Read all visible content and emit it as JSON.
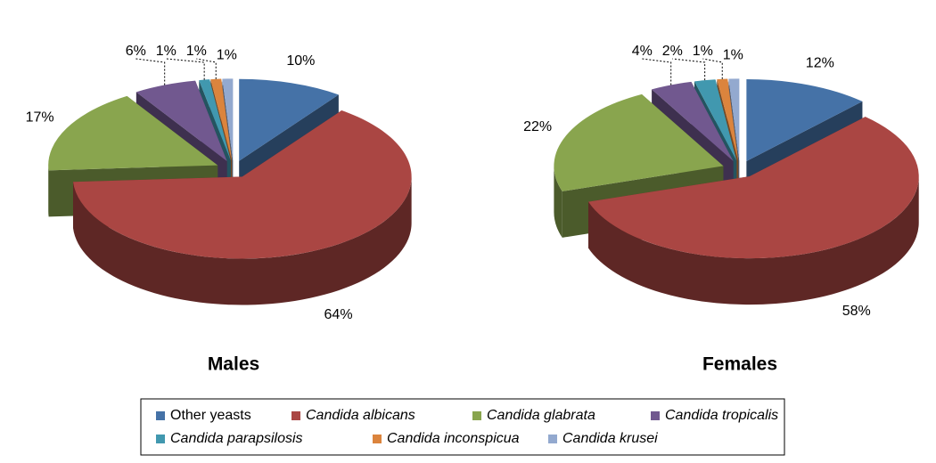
{
  "chart_data": {
    "type": "pie",
    "categories": [
      "Other yeasts",
      "Candida albicans",
      "Candida glabrata",
      "Candida tropicalis",
      "Candida parapsilosis",
      "Candida inconspicua",
      "Candida krusei"
    ],
    "colors": [
      "#4572a7",
      "#aa4643",
      "#89a54e",
      "#71588f",
      "#4198af",
      "#db843d",
      "#93a9cf"
    ],
    "series": [
      {
        "name": "Males",
        "values": [
          10,
          64,
          17,
          6,
          1,
          1,
          1
        ],
        "value_labels": [
          "10%",
          "64%",
          "17%",
          "6%",
          "1%",
          "1%",
          "1%"
        ]
      },
      {
        "name": "Females",
        "values": [
          12,
          58,
          22,
          4,
          2,
          1,
          1
        ],
        "value_labels": [
          "12%",
          "58%",
          "22%",
          "4%",
          "2%",
          "1%",
          "1%"
        ]
      }
    ],
    "legend": "bottom"
  }
}
